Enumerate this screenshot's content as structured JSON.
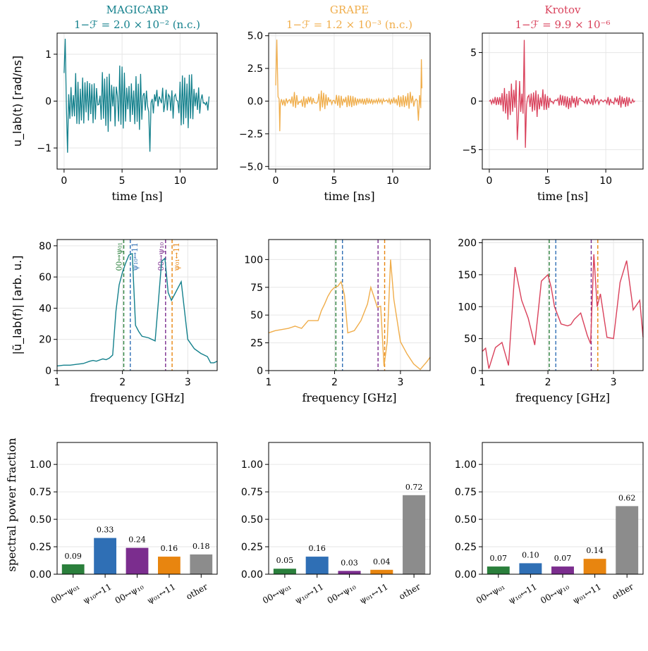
{
  "chart_data": [
    {
      "type": "line",
      "row": "time",
      "panel": "MAGICARP",
      "title": "MAGICARP",
      "subtitle": "1−ℱ = 2.0 × 10⁻²  (n.c.)",
      "title_color": "#13808c",
      "xlabel": "time [ns]",
      "ylabel": "u_lab(t) [rad/ns]",
      "xlim": [
        -0.6,
        13.2
      ],
      "ylim": [
        -1.45,
        1.45
      ],
      "xticks": [
        0,
        5,
        10
      ],
      "yticks": [
        -1,
        0,
        1
      ],
      "ytick_labels": [
        "−1",
        "0",
        "1"
      ],
      "grid": true,
      "color": "#13808c",
      "series": [
        {
          "kind": "oscillation",
          "tmax": 12.5,
          "dt": 0.1,
          "env": [
            [
              0,
              1.3
            ],
            [
              0.2,
              1.0
            ],
            [
              0.5,
              0.8
            ],
            [
              2,
              0.6
            ],
            [
              4,
              0.9
            ],
            [
              5,
              0.8
            ],
            [
              6,
              0.6
            ],
            [
              7.2,
              1.05
            ],
            [
              8,
              0.7
            ],
            [
              10,
              0.75
            ],
            [
              11,
              0.6
            ],
            [
              12.5,
              0.5
            ]
          ],
          "spikes": [
            [
              0.0,
              0.6
            ],
            [
              0.1,
              1.33
            ],
            [
              0.3,
              -1.1
            ],
            [
              7.4,
              -1.08
            ],
            [
              12.4,
              -0.2
            ]
          ],
          "seed": 3
        }
      ]
    },
    {
      "type": "line",
      "row": "time",
      "panel": "GRAPE",
      "title": "GRAPE",
      "subtitle": "1−ℱ = 1.2 × 10⁻³  (n.c.)",
      "title_color": "#f0ad4a",
      "xlabel": "time [ns]",
      "ylabel": "",
      "xlim": [
        -0.6,
        13.2
      ],
      "ylim": [
        -5.2,
        5.2
      ],
      "xticks": [
        0,
        5,
        10
      ],
      "yticks": [
        -5.0,
        -2.5,
        0.0,
        2.5,
        5.0
      ],
      "ytick_labels": [
        "−5.0",
        "−2.5",
        "0.0",
        "2.5",
        "5.0"
      ],
      "grid": true,
      "color": "#f0ad4a",
      "series": [
        {
          "kind": "oscillation",
          "tmax": 12.5,
          "dt": 0.1,
          "env": [
            [
              0,
              2.0
            ],
            [
              0.5,
              0.9
            ],
            [
              2,
              0.9
            ],
            [
              4,
              1.1
            ],
            [
              5,
              0.8
            ],
            [
              6,
              0.6
            ],
            [
              8,
              0.3
            ],
            [
              10,
              0.3
            ],
            [
              11,
              0.6
            ],
            [
              12,
              1.4
            ],
            [
              12.5,
              1.0
            ]
          ],
          "spikes": [
            [
              0.0,
              1.2
            ],
            [
              0.1,
              4.7
            ],
            [
              0.35,
              -2.3
            ],
            [
              12.2,
              -1.5
            ],
            [
              12.45,
              3.2
            ]
          ],
          "seed": 7
        }
      ]
    },
    {
      "type": "line",
      "row": "time",
      "panel": "Krotov",
      "title": "Krotov",
      "subtitle": "1−ℱ = 9.9 × 10⁻⁶",
      "title_color": "#d9415b",
      "xlabel": "time [ns]",
      "ylabel": "",
      "xlim": [
        -0.6,
        13.2
      ],
      "ylim": [
        -7.0,
        7.0
      ],
      "xticks": [
        0,
        5,
        10
      ],
      "yticks": [
        -5,
        0,
        5
      ],
      "ytick_labels": [
        "−5",
        "0",
        "5"
      ],
      "grid": true,
      "color": "#d9415b",
      "series": [
        {
          "kind": "oscillation",
          "tmax": 12.5,
          "dt": 0.1,
          "env": [
            [
              0,
              0.4
            ],
            [
              1,
              1.2
            ],
            [
              2,
              2.5
            ],
            [
              3,
              3.8
            ],
            [
              4,
              2.2
            ],
            [
              5,
              1.3
            ],
            [
              6,
              0.8
            ],
            [
              7,
              0.9
            ],
            [
              8,
              1.2
            ],
            [
              9,
              1.0
            ],
            [
              10,
              0.6
            ],
            [
              11,
              0.9
            ],
            [
              12.5,
              0.3
            ]
          ],
          "spikes": [
            [
              3.0,
              6.3
            ],
            [
              3.1,
              -4.8
            ],
            [
              2.4,
              -4.0
            ],
            [
              12.2,
              -0.2
            ]
          ],
          "seed": 11
        }
      ]
    },
    {
      "type": "line",
      "row": "spectrum",
      "panel": "MAGICARP",
      "xlabel": "frequency [GHz]",
      "ylabel": "|ũ_lab(f)| [arb. u.]",
      "xlim": [
        1.0,
        3.45
      ],
      "ylim": [
        0,
        84
      ],
      "xticks": [
        1,
        2,
        3
      ],
      "yticks": [
        0,
        20,
        40,
        60,
        80
      ],
      "grid": true,
      "color": "#13808c",
      "x": [
        1.0,
        1.1,
        1.2,
        1.3,
        1.4,
        1.5,
        1.55,
        1.6,
        1.7,
        1.75,
        1.8,
        1.85,
        1.9,
        1.95,
        2.0,
        2.05,
        2.1,
        2.15,
        2.2,
        2.25,
        2.3,
        2.4,
        2.5,
        2.55,
        2.6,
        2.65,
        2.7,
        2.75,
        2.8,
        2.9,
        3.0,
        3.1,
        3.2,
        3.3,
        3.35,
        3.4,
        3.45
      ],
      "y": [
        3,
        3.5,
        3.5,
        4,
        4.5,
        6,
        6.5,
        6,
        7.5,
        7,
        8,
        10,
        38,
        55,
        63,
        69,
        74,
        75,
        29,
        25,
        22,
        21,
        19,
        44,
        70,
        72,
        50,
        45,
        49,
        57,
        20,
        14,
        11,
        9,
        5,
        5,
        6
      ],
      "vlines": [
        {
          "x": 2.02,
          "color": "#2a7f3b",
          "label": "00↔ψ₀₁"
        },
        {
          "x": 2.12,
          "color": "#2f6fb5",
          "label": "ψ₁₀↔11"
        },
        {
          "x": 2.66,
          "color": "#7b2d8e",
          "label": "00↔ψ₁₀"
        },
        {
          "x": 2.76,
          "color": "#e8850f",
          "label": "ψ₀₁↔11"
        }
      ]
    },
    {
      "type": "line",
      "row": "spectrum",
      "panel": "GRAPE",
      "xlabel": "frequency [GHz]",
      "ylabel": "",
      "xlim": [
        1.0,
        3.45
      ],
      "ylim": [
        0,
        118
      ],
      "xticks": [
        1,
        2,
        3
      ],
      "yticks": [
        0,
        25,
        50,
        75,
        100
      ],
      "grid": true,
      "color": "#f0ad4a",
      "x": [
        1.0,
        1.1,
        1.2,
        1.3,
        1.35,
        1.4,
        1.5,
        1.6,
        1.7,
        1.75,
        1.8,
        1.85,
        1.9,
        1.95,
        2.0,
        2.05,
        2.1,
        2.15,
        2.2,
        2.3,
        2.4,
        2.5,
        2.55,
        2.6,
        2.65,
        2.7,
        2.75,
        2.8,
        2.85,
        2.9,
        3.0,
        3.1,
        3.2,
        3.3,
        3.4,
        3.45
      ],
      "y": [
        34,
        36,
        37,
        38,
        39,
        40,
        38,
        45,
        45,
        45,
        54,
        60,
        67,
        72,
        75,
        76,
        80,
        68,
        34,
        36,
        45,
        60,
        75,
        66,
        57,
        58,
        4,
        26,
        100,
        64,
        26,
        15,
        6,
        1,
        8,
        12
      ],
      "vlines": [
        {
          "x": 2.02,
          "color": "#2a7f3b"
        },
        {
          "x": 2.12,
          "color": "#2f6fb5"
        },
        {
          "x": 2.66,
          "color": "#7b2d8e"
        },
        {
          "x": 2.76,
          "color": "#e8850f"
        }
      ]
    },
    {
      "type": "line",
      "row": "spectrum",
      "panel": "Krotov",
      "xlabel": "frequency [GHz]",
      "ylabel": "",
      "xlim": [
        1.0,
        3.45
      ],
      "ylim": [
        0,
        205
      ],
      "xticks": [
        1,
        2,
        3
      ],
      "yticks": [
        0,
        50,
        100,
        150,
        200
      ],
      "grid": true,
      "color": "#d9415b",
      "x": [
        1.0,
        1.05,
        1.1,
        1.2,
        1.3,
        1.4,
        1.5,
        1.6,
        1.7,
        1.8,
        1.9,
        2.0,
        2.05,
        2.1,
        2.2,
        2.3,
        2.35,
        2.4,
        2.5,
        2.6,
        2.65,
        2.7,
        2.75,
        2.8,
        2.9,
        3.0,
        3.1,
        3.2,
        3.3,
        3.4,
        3.45
      ],
      "y": [
        30,
        35,
        3,
        36,
        44,
        8,
        162,
        110,
        82,
        40,
        140,
        150,
        130,
        100,
        73,
        70,
        72,
        80,
        90,
        55,
        42,
        182,
        100,
        120,
        52,
        50,
        138,
        172,
        95,
        110,
        52
      ],
      "vlines": [
        {
          "x": 2.02,
          "color": "#2a7f3b"
        },
        {
          "x": 2.12,
          "color": "#2f6fb5"
        },
        {
          "x": 2.66,
          "color": "#7b2d8e"
        },
        {
          "x": 2.76,
          "color": "#e8850f"
        }
      ]
    },
    {
      "type": "bar",
      "row": "power",
      "panel": "MAGICARP",
      "ylabel": "spectral power fraction",
      "categories": [
        "00↔ψ₀₁",
        "ψ₁₀↔11",
        "00↔ψ₁₀",
        "ψ₀₁↔11",
        "other"
      ],
      "values": [
        0.09,
        0.33,
        0.24,
        0.16,
        0.18
      ],
      "labels": [
        "0.09",
        "0.33",
        "0.24",
        "0.16",
        "0.18"
      ],
      "colors": [
        "#2a7f3b",
        "#2f6fb5",
        "#7b2d8e",
        "#e8850f",
        "#8c8c8c"
      ],
      "ylim": [
        0,
        1.2
      ],
      "yticks": [
        0.0,
        0.25,
        0.5,
        0.75,
        1.0
      ],
      "ytick_labels": [
        "0.00",
        "0.25",
        "0.50",
        "0.75",
        "1.00"
      ],
      "grid": true
    },
    {
      "type": "bar",
      "row": "power",
      "panel": "GRAPE",
      "ylabel": "",
      "categories": [
        "00↔ψ₀₁",
        "ψ₁₀↔11",
        "00↔ψ₁₀",
        "ψ₀₁↔11",
        "other"
      ],
      "values": [
        0.05,
        0.16,
        0.03,
        0.04,
        0.72
      ],
      "labels": [
        "0.05",
        "0.16",
        "0.03",
        "0.04",
        "0.72"
      ],
      "colors": [
        "#2a7f3b",
        "#2f6fb5",
        "#7b2d8e",
        "#e8850f",
        "#8c8c8c"
      ],
      "ylim": [
        0,
        1.2
      ],
      "yticks": [
        0.0,
        0.25,
        0.5,
        0.75,
        1.0
      ],
      "ytick_labels": [
        "0.00",
        "0.25",
        "0.50",
        "0.75",
        "1.00"
      ],
      "grid": true
    },
    {
      "type": "bar",
      "row": "power",
      "panel": "Krotov",
      "ylabel": "",
      "categories": [
        "00↔ψ₀₁",
        "ψ₁₀↔11",
        "00↔ψ₁₀",
        "ψ₀₁↔11",
        "other"
      ],
      "values": [
        0.07,
        0.1,
        0.07,
        0.14,
        0.62
      ],
      "labels": [
        "0.07",
        "0.10",
        "0.07",
        "0.14",
        "0.62"
      ],
      "colors": [
        "#2a7f3b",
        "#2f6fb5",
        "#7b2d8e",
        "#e8850f",
        "#8c8c8c"
      ],
      "ylim": [
        0,
        1.2
      ],
      "yticks": [
        0.0,
        0.25,
        0.5,
        0.75,
        1.0
      ],
      "ytick_labels": [
        "0.00",
        "0.25",
        "0.50",
        "0.75",
        "1.00"
      ],
      "grid": true
    }
  ]
}
